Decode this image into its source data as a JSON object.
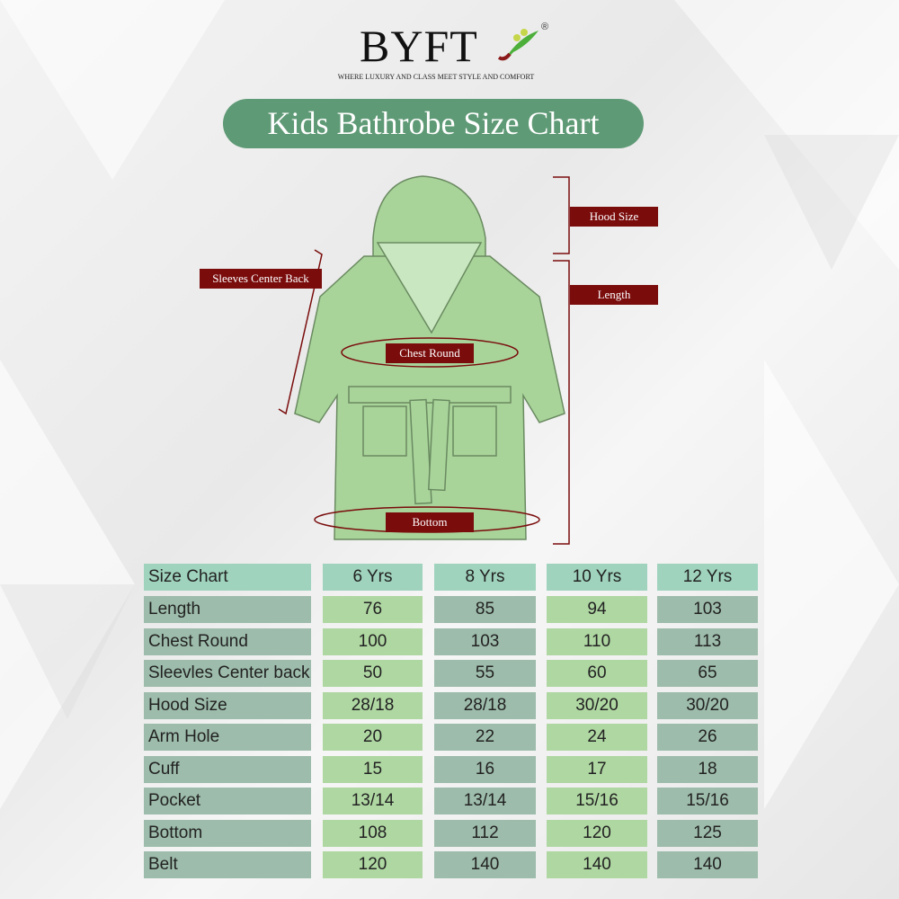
{
  "brand": {
    "name": "BYFT",
    "registered": "®",
    "tagline": "WHERE LUXURY AND CLASS MEET STYLE AND COMFORT"
  },
  "title": "Kids Bathrobe Size Chart",
  "diagram_labels": {
    "hood": "Hood Size",
    "length": "Length",
    "sleeves": "Sleeves Center Back",
    "chest": "Chest Round",
    "bottom": "Bottom"
  },
  "colors": {
    "title_bg": "#5f9a76",
    "label_bg": "#7a0c0c",
    "robe": "#a8d49a",
    "header_cell": "#9fd3bd",
    "row_label": "#9dbcab",
    "light_col": "#afd7a2",
    "dark_col": "#9dbcab"
  },
  "table": {
    "header": [
      "Size Chart",
      "6 Yrs",
      "8 Yrs",
      "10 Yrs",
      "12 Yrs"
    ],
    "rows": [
      [
        "Length",
        "76",
        "85",
        "94",
        "103"
      ],
      [
        "Chest Round",
        "100",
        "103",
        "110",
        "113"
      ],
      [
        "Sleevles Center back",
        "50",
        "55",
        "60",
        "65"
      ],
      [
        "Hood Size",
        "28/18",
        "28/18",
        "30/20",
        "30/20"
      ],
      [
        "Arm Hole",
        "20",
        "22",
        "24",
        "26"
      ],
      [
        "Cuff",
        "15",
        "16",
        "17",
        "18"
      ],
      [
        "Pocket",
        "13/14",
        "13/14",
        "15/16",
        "15/16"
      ],
      [
        "Bottom",
        "108",
        "112",
        "120",
        "125"
      ],
      [
        "Belt",
        "120",
        "140",
        "140",
        "140"
      ]
    ]
  }
}
